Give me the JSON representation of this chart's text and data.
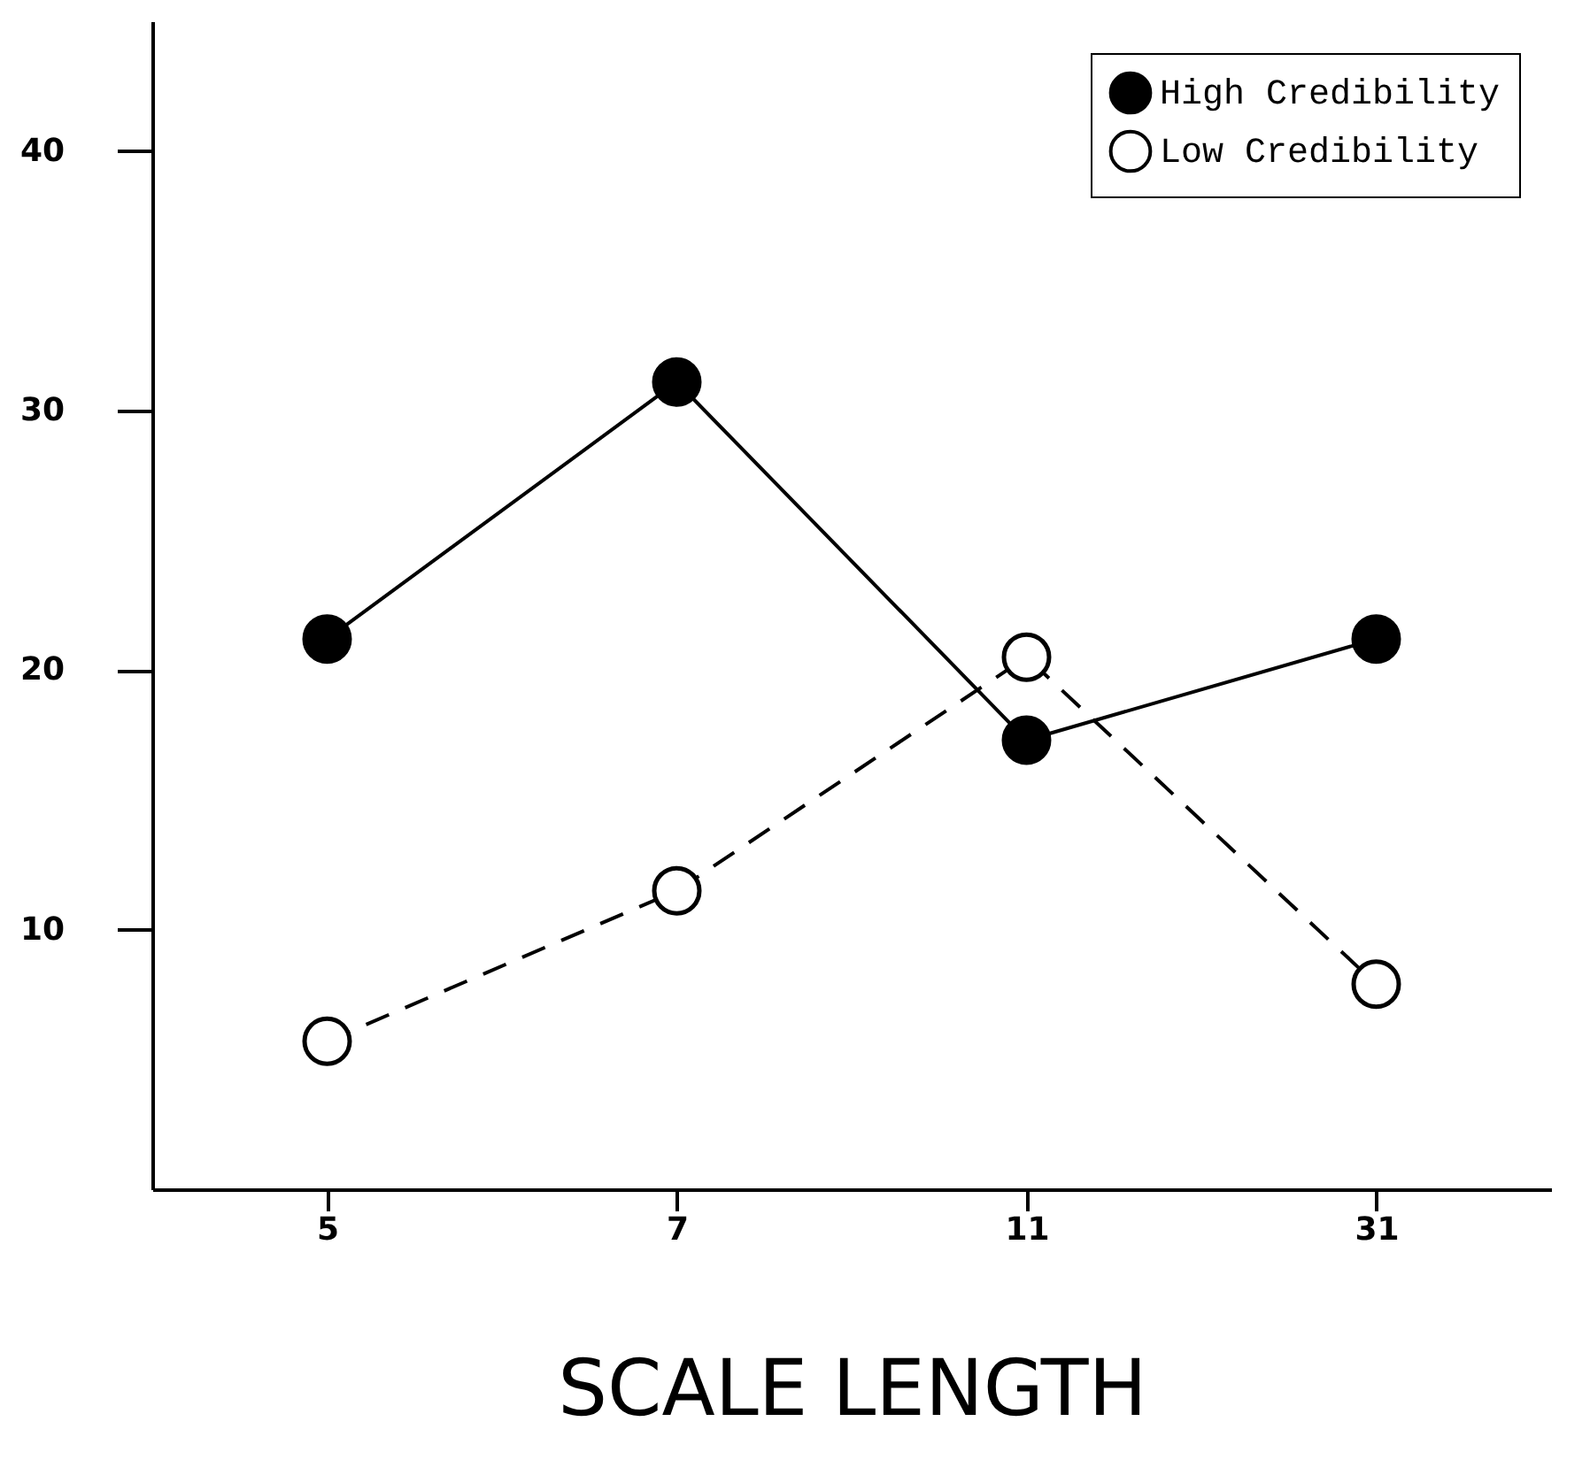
{
  "chart_data": {
    "type": "line",
    "xlabel": "SCALE LENGTH",
    "categories": [
      "5",
      "7",
      "11",
      "31"
    ],
    "series": [
      {
        "name": "High Credibility",
        "color": "#000000",
        "line_style": "solid",
        "values": [
          21.2,
          31.1,
          17.3,
          21.2
        ]
      },
      {
        "name": "Low Credibility",
        "color": "#000000",
        "line_style": "dashed",
        "values": [
          5.7,
          11.5,
          20.5,
          7.9
        ]
      }
    ],
    "ylim": [
      0,
      45
    ],
    "yticks": [
      10,
      20,
      30,
      40
    ],
    "grid": false,
    "legend": "top right",
    "marker": "circle"
  }
}
